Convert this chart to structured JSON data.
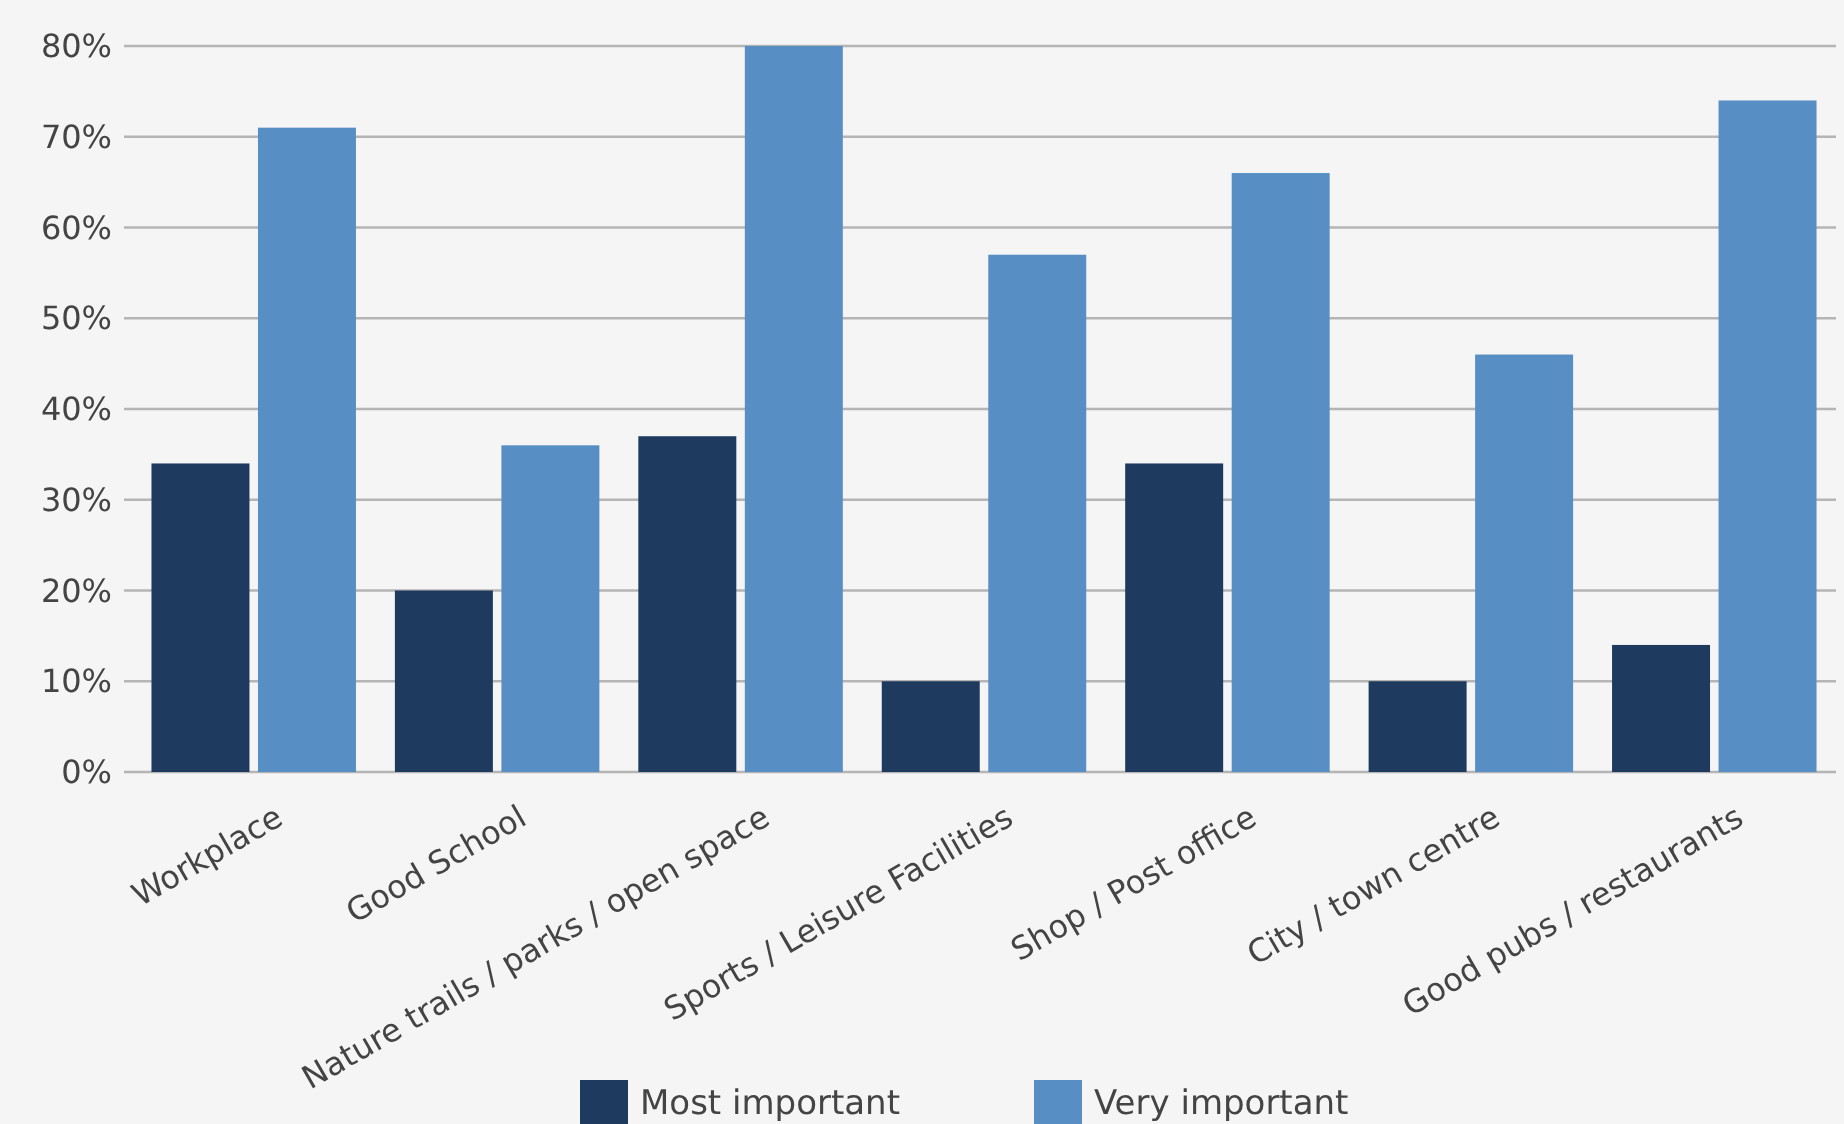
{
  "chart_data": {
    "type": "bar",
    "categories": [
      "Workplace",
      "Good School",
      "Nature trails / parks / open space",
      "Sports / Leisure Facilities",
      "Shop / Post office",
      "City / town centre",
      "Good pubs / restaurants"
    ],
    "series": [
      {
        "name": "Most important",
        "color": "#1f3a5f",
        "values": [
          34,
          20,
          37,
          10,
          34,
          10,
          14
        ]
      },
      {
        "name": "Very important",
        "color": "#578fc4",
        "values": [
          71,
          36,
          80,
          57,
          66,
          46,
          74
        ]
      }
    ],
    "ylim": [
      0,
      80
    ],
    "yticks": [
      {
        "value": 0,
        "label": "0%"
      },
      {
        "value": 10,
        "label": "10%"
      },
      {
        "value": 20,
        "label": "20%"
      },
      {
        "value": 30,
        "label": "30%"
      },
      {
        "value": 40,
        "label": "40%"
      },
      {
        "value": 50,
        "label": "50%"
      },
      {
        "value": 60,
        "label": "60%"
      },
      {
        "value": 70,
        "label": "70%"
      },
      {
        "value": 80,
        "label": "80%"
      }
    ],
    "grid": "y",
    "legend": "bottom"
  }
}
